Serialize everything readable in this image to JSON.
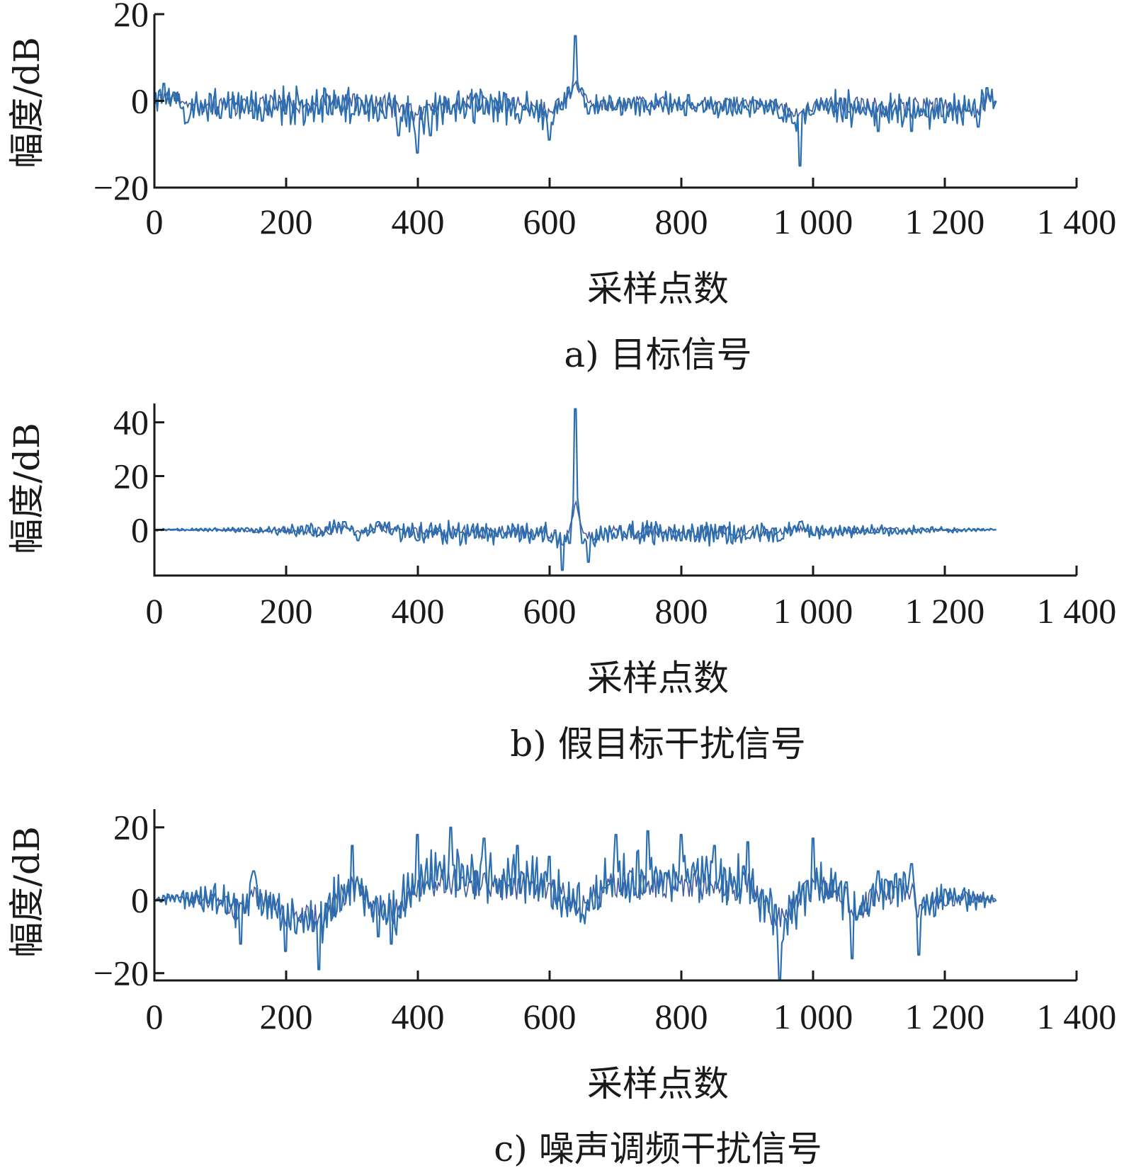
{
  "chart_data": [
    {
      "type": "line",
      "caption": "a) 目标信号",
      "xlabel": "采样点数",
      "ylabel": "幅度/dB",
      "xlim": [
        0,
        1400
      ],
      "ylim": [
        -20,
        20
      ],
      "x_ticks": [
        0,
        200,
        400,
        600,
        800,
        1000,
        1200,
        1400
      ],
      "x_tick_labels": [
        "0",
        "200",
        "400",
        "600",
        "800",
        "1 000",
        "1 200",
        "1 400"
      ],
      "y_ticks": [
        -20,
        0,
        20
      ],
      "y_tick_labels": [
        "−20",
        "0",
        "20"
      ],
      "grid": false,
      "series_color": "#2c6fb0",
      "series": [
        {
          "x": [
            0,
            15,
            30,
            50,
            100,
            150,
            200,
            250,
            300,
            350,
            370,
            400,
            420,
            450,
            500,
            550,
            600,
            620,
            640,
            660,
            700,
            750,
            800,
            850,
            900,
            950,
            980,
            1000,
            1050,
            1100,
            1150,
            1200,
            1250,
            1265,
            1280
          ],
          "y": [
            0,
            4,
            2,
            -5,
            -4,
            -4,
            -3,
            -3,
            -3,
            -4,
            -8,
            -12,
            -8,
            -3,
            -3,
            -3,
            -9,
            -2,
            15,
            -3,
            -2,
            -2,
            -2,
            -3,
            -2,
            -4,
            -15,
            -3,
            -4,
            -7,
            -7,
            -5,
            -6,
            3,
            0
          ],
          "envelope_amplitude": [
            2,
            2,
            2,
            3,
            3,
            3,
            3,
            3,
            3,
            3,
            3,
            3,
            3,
            3,
            3,
            3,
            3,
            2,
            1,
            2,
            2,
            2,
            2,
            2,
            2,
            2,
            2,
            2,
            3,
            3,
            3,
            3,
            3,
            2,
            1
          ]
        }
      ]
    },
    {
      "type": "line",
      "caption": "b) 假目标干扰信号",
      "xlabel": "采样点数",
      "ylabel": "幅度/dB",
      "xlim": [
        0,
        1400
      ],
      "ylim": [
        -17,
        47
      ],
      "x_ticks": [
        0,
        200,
        400,
        600,
        800,
        1000,
        1200,
        1400
      ],
      "x_tick_labels": [
        "0",
        "200",
        "400",
        "600",
        "800",
        "1 000",
        "1 200",
        "1 400"
      ],
      "y_ticks": [
        0,
        20,
        40
      ],
      "y_tick_labels": [
        "0",
        "20",
        "40"
      ],
      "grid": false,
      "series_color": "#2c6fb0",
      "series": [
        {
          "x": [
            0,
            100,
            200,
            250,
            290,
            310,
            340,
            400,
            500,
            600,
            620,
            630,
            640,
            650,
            660,
            700,
            800,
            900,
            950,
            980,
            1000,
            1100,
            1200,
            1280
          ],
          "y": [
            0,
            0,
            -1,
            -2,
            3,
            -4,
            3,
            -4,
            -3,
            -4,
            -15,
            -5,
            45,
            -5,
            -12,
            -3,
            -4,
            -3,
            -4,
            3,
            -2,
            -1,
            0,
            0
          ],
          "envelope_amplitude": [
            0.3,
            0.5,
            1.5,
            2.5,
            2,
            1,
            2,
            3,
            3,
            3,
            3,
            2,
            1,
            2,
            3,
            3,
            3,
            3,
            2,
            2,
            2,
            1.5,
            0.8,
            0.3
          ]
        }
      ]
    },
    {
      "type": "line",
      "caption": "c) 噪声调频干扰信号",
      "xlabel": "采样点数",
      "ylabel": "幅度/dB",
      "xlim": [
        0,
        1400
      ],
      "ylim": [
        -22,
        25
      ],
      "x_ticks": [
        0,
        200,
        400,
        600,
        800,
        1000,
        1200,
        1400
      ],
      "x_tick_labels": [
        "0",
        "200",
        "400",
        "600",
        "800",
        "1 000",
        "1 200",
        "1 400"
      ],
      "y_ticks": [
        -20,
        0,
        20
      ],
      "y_tick_labels": [
        "−20",
        "0",
        "20"
      ],
      "grid": false,
      "series_color": "#2c6fb0",
      "series": [
        {
          "x": [
            0,
            50,
            100,
            130,
            150,
            200,
            250,
            300,
            340,
            360,
            400,
            450,
            500,
            550,
            600,
            650,
            700,
            750,
            800,
            850,
            900,
            950,
            1000,
            1050,
            1060,
            1100,
            1150,
            1160,
            1200,
            1250,
            1280
          ],
          "y": [
            0,
            2,
            0,
            -12,
            8,
            -14,
            -19,
            15,
            -10,
            -12,
            18,
            20,
            17,
            15,
            12,
            -4,
            18,
            19,
            18,
            15,
            16,
            -22,
            17,
            5,
            -16,
            8,
            10,
            -15,
            3,
            1,
            0
          ],
          "envelope_amplitude": [
            0.5,
            2,
            3,
            4,
            4,
            5,
            5,
            5,
            5,
            5,
            5,
            5,
            5,
            5,
            5,
            5,
            5,
            5,
            5,
            5,
            5,
            5,
            5,
            5,
            5,
            4,
            4,
            4,
            3,
            2,
            0.5
          ]
        }
      ]
    }
  ]
}
